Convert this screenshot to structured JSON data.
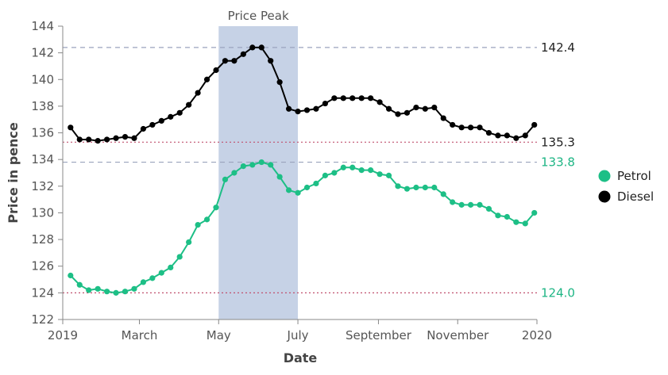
{
  "chart_data": {
    "type": "line",
    "xlabel": "Date",
    "ylabel": "Price in pence",
    "ylim": [
      122,
      144
    ],
    "y_ticks": [
      122,
      124,
      126,
      128,
      130,
      132,
      134,
      136,
      138,
      140,
      142,
      144
    ],
    "x_range": [
      "2019-01-01",
      "2020-01-01"
    ],
    "x_ticks": [
      {
        "date": "2019-01-01",
        "label": "2019"
      },
      {
        "date": "2019-03-01",
        "label": "March"
      },
      {
        "date": "2019-05-01",
        "label": "May"
      },
      {
        "date": "2019-07-01",
        "label": "July"
      },
      {
        "date": "2019-09-01",
        "label": "September"
      },
      {
        "date": "2019-11-01",
        "label": "November"
      },
      {
        "date": "2020-01-01",
        "label": "2020"
      }
    ],
    "grid": false,
    "legend_position": "right",
    "band": {
      "label": "Price Peak",
      "start": "2019-05-01",
      "end": "2019-07-01",
      "color": "#c6d2e6"
    },
    "reference_lines": [
      {
        "value": 142.4,
        "label": "142.4",
        "style": "dashed",
        "color": "#9aa3bd",
        "label_color": "#222222"
      },
      {
        "value": 135.3,
        "label": "135.3",
        "style": "dotted",
        "color": "#c0506e",
        "label_color": "#222222"
      },
      {
        "value": 133.8,
        "label": "133.8",
        "style": "dashed",
        "color": "#9aa3bd",
        "label_color": "#1db584"
      },
      {
        "value": 124.0,
        "label": "124.0",
        "style": "dotted",
        "color": "#c0506e",
        "label_color": "#1db584"
      }
    ],
    "x": [
      "2019-01-07",
      "2019-01-14",
      "2019-01-21",
      "2019-01-28",
      "2019-02-04",
      "2019-02-11",
      "2019-02-18",
      "2019-02-25",
      "2019-03-04",
      "2019-03-11",
      "2019-03-18",
      "2019-03-25",
      "2019-04-01",
      "2019-04-08",
      "2019-04-15",
      "2019-04-22",
      "2019-04-29",
      "2019-05-06",
      "2019-05-13",
      "2019-05-20",
      "2019-05-27",
      "2019-06-03",
      "2019-06-10",
      "2019-06-17",
      "2019-06-24",
      "2019-07-01",
      "2019-07-08",
      "2019-07-15",
      "2019-07-22",
      "2019-07-29",
      "2019-08-05",
      "2019-08-12",
      "2019-08-19",
      "2019-08-26",
      "2019-09-02",
      "2019-09-09",
      "2019-09-16",
      "2019-09-23",
      "2019-09-30",
      "2019-10-07",
      "2019-10-14",
      "2019-10-21",
      "2019-10-28",
      "2019-11-04",
      "2019-11-11",
      "2019-11-18",
      "2019-11-25",
      "2019-12-02",
      "2019-12-09",
      "2019-12-16",
      "2019-12-23",
      "2019-12-30"
    ],
    "series": [
      {
        "name": "Petrol",
        "color": "#1dbf86",
        "values": [
          125.3,
          124.6,
          124.2,
          124.3,
          124.1,
          124.0,
          124.1,
          124.3,
          124.8,
          125.1,
          125.5,
          125.9,
          126.7,
          127.8,
          129.1,
          129.5,
          130.4,
          132.5,
          133.0,
          133.5,
          133.6,
          133.8,
          133.6,
          132.7,
          131.7,
          131.5,
          131.9,
          132.2,
          132.8,
          133.0,
          133.4,
          133.4,
          133.2,
          133.2,
          132.9,
          132.8,
          132.0,
          131.8,
          131.9,
          131.9,
          131.9,
          131.4,
          130.8,
          130.6,
          130.6,
          130.6,
          130.3,
          129.8,
          129.7,
          129.3,
          129.2,
          130.0
        ]
      },
      {
        "name": "Diesel",
        "color": "#000000",
        "values": [
          136.4,
          135.5,
          135.5,
          135.4,
          135.5,
          135.6,
          135.7,
          135.6,
          136.3,
          136.6,
          136.9,
          137.2,
          137.5,
          138.1,
          139.0,
          140.0,
          140.7,
          141.4,
          141.4,
          141.9,
          142.4,
          142.4,
          141.4,
          139.8,
          137.8,
          137.6,
          137.7,
          137.8,
          138.2,
          138.6,
          138.6,
          138.6,
          138.6,
          138.6,
          138.3,
          137.8,
          137.4,
          137.5,
          137.9,
          137.8,
          137.9,
          137.1,
          136.6,
          136.4,
          136.4,
          136.4,
          136.0,
          135.8,
          135.8,
          135.6,
          135.8,
          136.6
        ]
      }
    ]
  }
}
